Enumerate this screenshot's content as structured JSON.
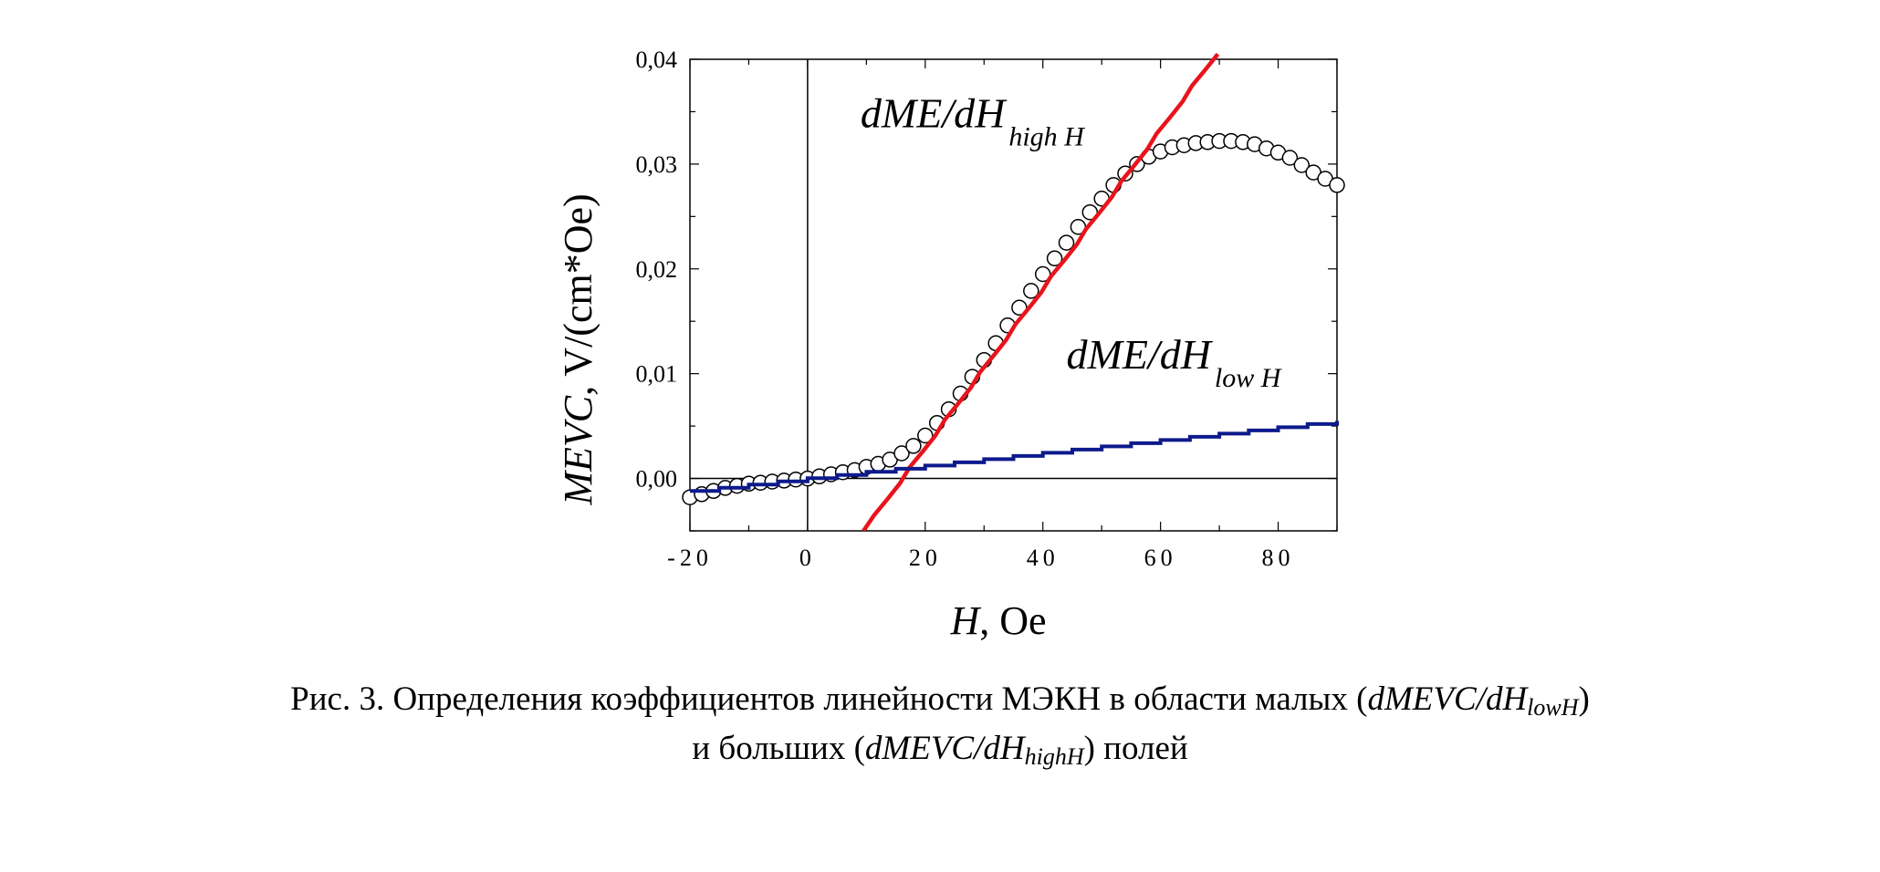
{
  "chart_data": {
    "type": "scatter",
    "x_ticks": [
      "-20",
      "0",
      "20",
      "40",
      "60",
      "80"
    ],
    "y_ticks": [
      "0,00",
      "0,01",
      "0,02",
      "0,03",
      "0,04"
    ],
    "xlim": [
      -20,
      90
    ],
    "ylim": [
      -0.005,
      0.04
    ],
    "xlabel_italic": "H",
    "xlabel_rest": ", Oe",
    "ylabel_italic": "MEVC",
    "ylabel_rest": ", V/(cm*Oe)",
    "grid": false,
    "zero_lines": true,
    "annotations": [
      {
        "main": "dME/dH",
        "sub": "high H",
        "x": 9,
        "y": 0.0335
      },
      {
        "main": "dME/dH",
        "sub": "low H",
        "x": 44,
        "y": 0.0105
      }
    ],
    "series": [
      {
        "marker": "open-circle",
        "color": "#000000",
        "x": [
          -20,
          -18,
          -16,
          -14,
          -12,
          -10,
          -8,
          -6,
          -4,
          -2,
          0,
          2,
          4,
          6,
          8,
          10,
          12,
          14,
          16,
          18,
          20,
          22,
          24,
          26,
          28,
          30,
          32,
          34,
          36,
          38,
          40,
          42,
          44,
          46,
          48,
          50,
          52,
          54,
          56,
          58,
          60,
          62,
          64,
          66,
          68,
          70,
          72,
          74,
          76,
          78,
          80,
          82,
          84,
          86,
          88,
          90
        ],
        "y": [
          -0.0018,
          -0.0015,
          -0.0012,
          -0.0009,
          -0.0007,
          -0.0005,
          -0.0004,
          -0.0003,
          -0.0002,
          -0.0001,
          0.0,
          0.0002,
          0.0004,
          0.0006,
          0.0008,
          0.0011,
          0.0014,
          0.0018,
          0.0024,
          0.0031,
          0.0041,
          0.0053,
          0.0066,
          0.0081,
          0.0097,
          0.0113,
          0.0129,
          0.0146,
          0.0163,
          0.0179,
          0.0195,
          0.021,
          0.0225,
          0.024,
          0.0254,
          0.0267,
          0.028,
          0.0291,
          0.03,
          0.0307,
          0.0312,
          0.0316,
          0.0318,
          0.032,
          0.0321,
          0.0322,
          0.0322,
          0.0321,
          0.0319,
          0.0315,
          0.0311,
          0.0306,
          0.0299,
          0.0292,
          0.0286,
          0.028
        ]
      },
      {
        "marker": "line",
        "color": "#e8141c",
        "x": [
          9.5,
          69.5
        ],
        "y": [
          -0.005,
          0.0405
        ]
      },
      {
        "marker": "step-line",
        "color": "#0d1a8c",
        "x": [
          -20,
          90
        ],
        "y": [
          -0.0012,
          0.0055
        ]
      }
    ]
  },
  "caption": {
    "line1_prefix": "Рис. 3. Определения коэффициентов линейности МЭКН в области малых (",
    "line1_italic": "dMEVC/dH",
    "line1_sub": "lowH",
    "line1_suffix": ")",
    "line2_prefix": "и больших (",
    "line2_italic": "dMEVC/dH",
    "line2_sub": "highH",
    "line2_suffix": ") полей"
  }
}
